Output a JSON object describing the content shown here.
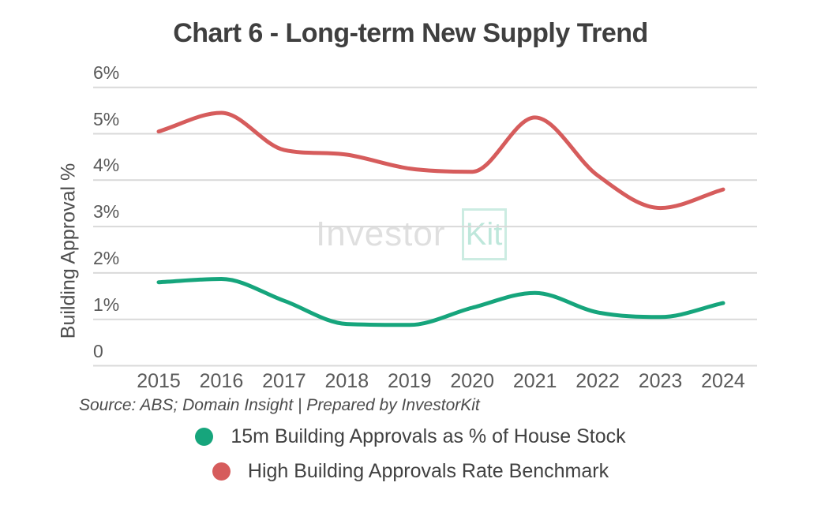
{
  "title": "Chart 6 - Long-term New Supply Trend",
  "source_note": "Source: ABS; Domain Insight | Prepared by InvestorKit",
  "watermark": {
    "part1": "Investor",
    "part2": "Kit"
  },
  "colors": {
    "green_series": "#16a57c",
    "red_series": "#d65c5c",
    "gridline": "#d9d9d9",
    "title_text": "#3f3f3f",
    "tick_text": "#5a5a5a"
  },
  "chart_data": {
    "type": "line",
    "title": "Chart 6 - Long-term New Supply Trend",
    "xlabel": "",
    "ylabel": "Building Approval %",
    "x": [
      2015,
      2016,
      2017,
      2018,
      2019,
      2020,
      2021,
      2022,
      2023,
      2024
    ],
    "y_ticks": [
      "6%",
      "5%",
      "4%",
      "3%",
      "2%",
      "1%",
      "0"
    ],
    "y_tick_values": [
      6,
      5,
      4,
      3,
      2,
      1,
      0
    ],
    "ylim": [
      0,
      6
    ],
    "grid": true,
    "curve": "smooth",
    "legend_position": "bottom",
    "series": [
      {
        "name": "15m Building Approvals as % of House Stock",
        "color": "#16a57c",
        "values": [
          1.8,
          1.87,
          1.4,
          0.9,
          0.88,
          1.25,
          1.57,
          1.15,
          1.05,
          1.35
        ]
      },
      {
        "name": "High Building Approvals Rate Benchmark",
        "color": "#d65c5c",
        "values": [
          5.05,
          5.45,
          4.65,
          4.55,
          4.25,
          4.18,
          5.35,
          4.1,
          3.4,
          3.8
        ]
      }
    ]
  }
}
